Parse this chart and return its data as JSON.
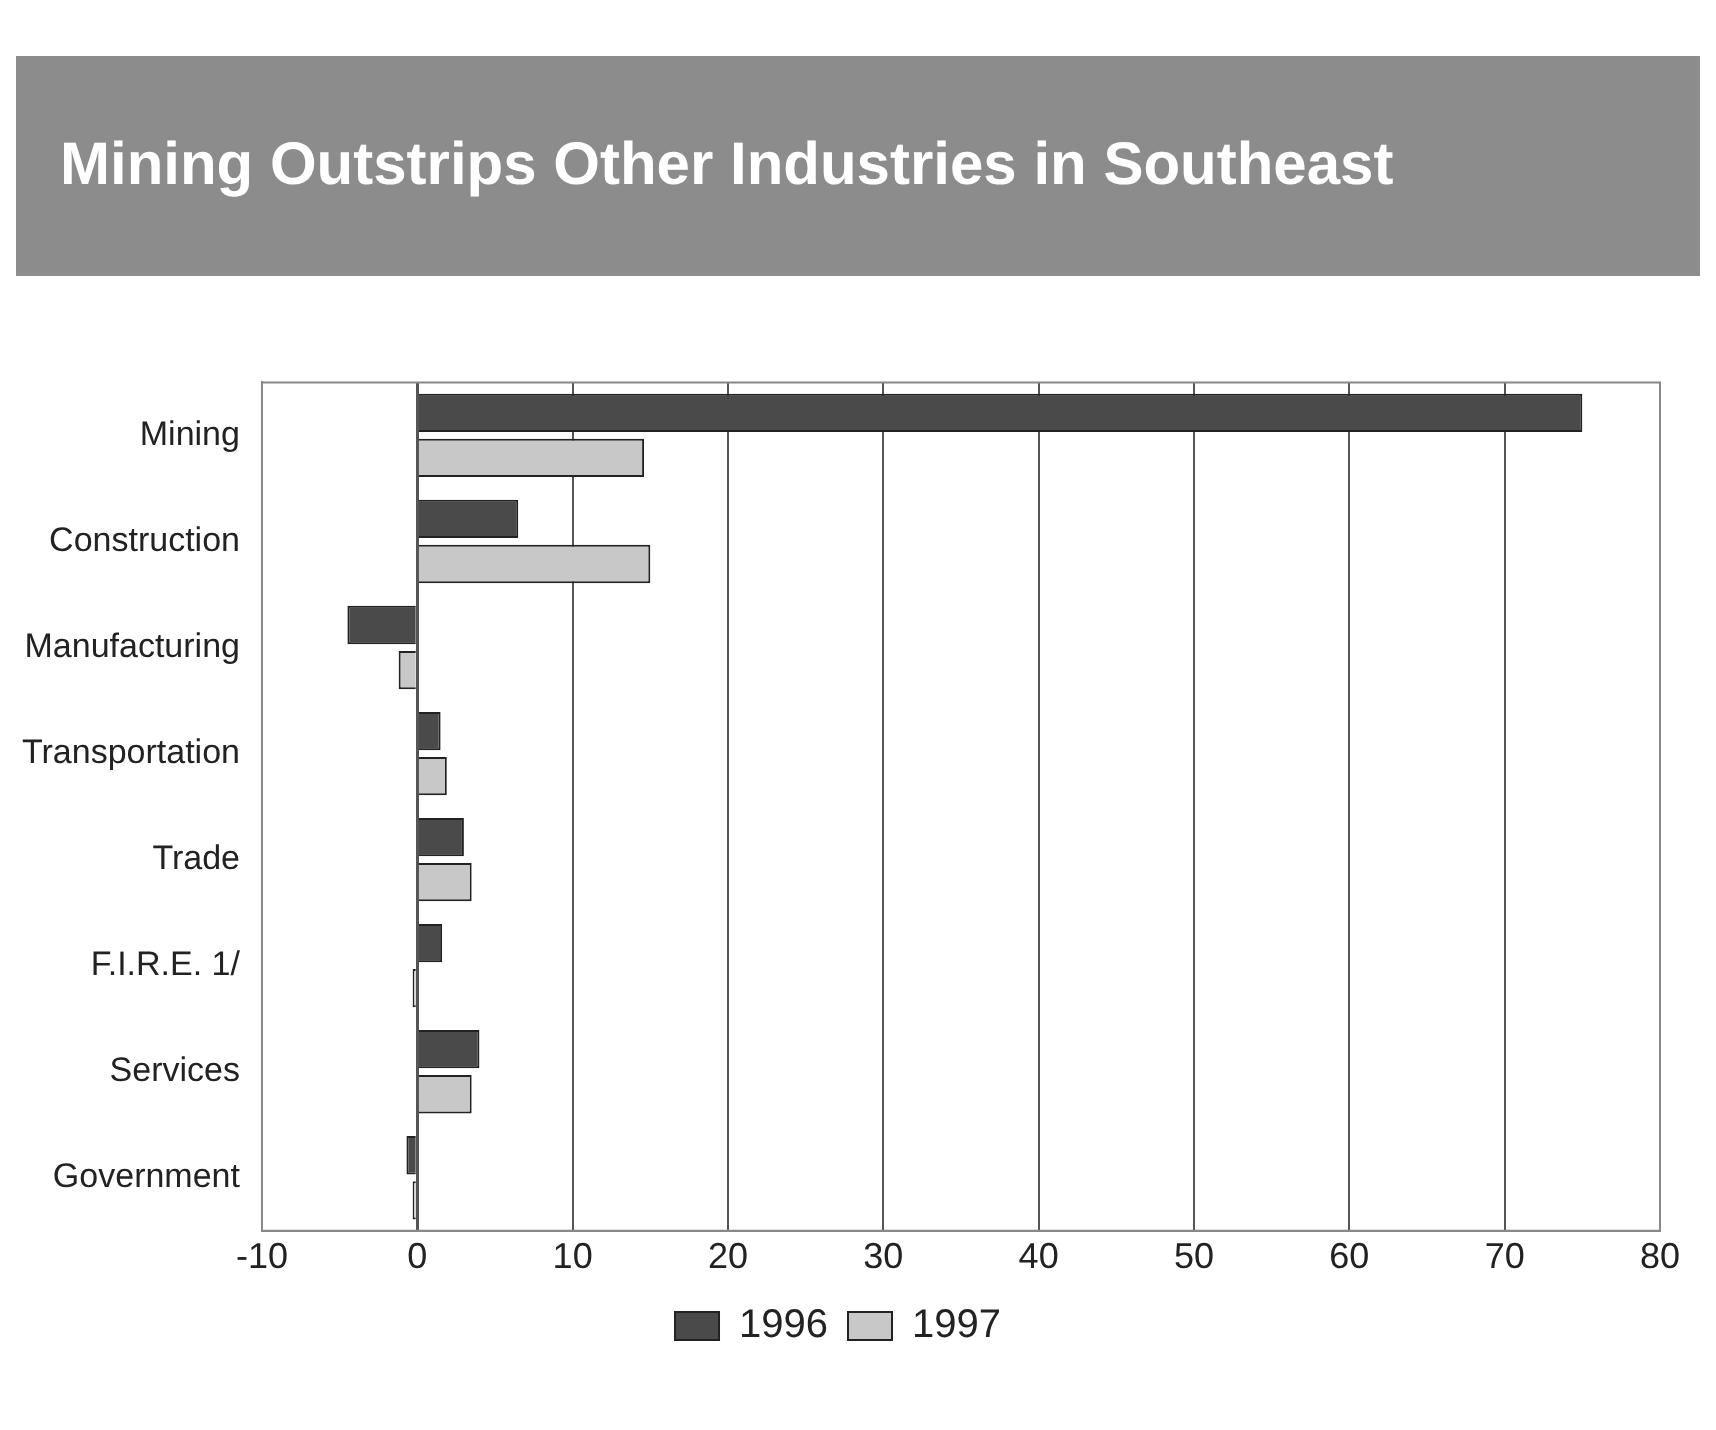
{
  "chart_data": {
    "type": "bar",
    "orientation": "horizontal",
    "title": "Mining  Outstrips Other Industries in Southeast",
    "categories": [
      "Mining",
      "Construction",
      "Manufacturing",
      "Transportation",
      "Trade",
      "F.I.R.E. 1/",
      "Services",
      "Government"
    ],
    "series": [
      {
        "name": "1996",
        "color": "#4a4a4a",
        "values": [
          75,
          6.5,
          -4.5,
          1.5,
          3,
          1.6,
          4,
          -0.7
        ]
      },
      {
        "name": "1997",
        "color": "#c8c8c8",
        "values": [
          14.6,
          15,
          -1.2,
          1.9,
          3.5,
          -0.3,
          3.5,
          -0.3
        ]
      }
    ],
    "xlim": [
      -10,
      80
    ],
    "xticks": [
      -10,
      0,
      10,
      20,
      30,
      40,
      50,
      60,
      70,
      80
    ],
    "grid": "x",
    "legend": "bottom"
  }
}
